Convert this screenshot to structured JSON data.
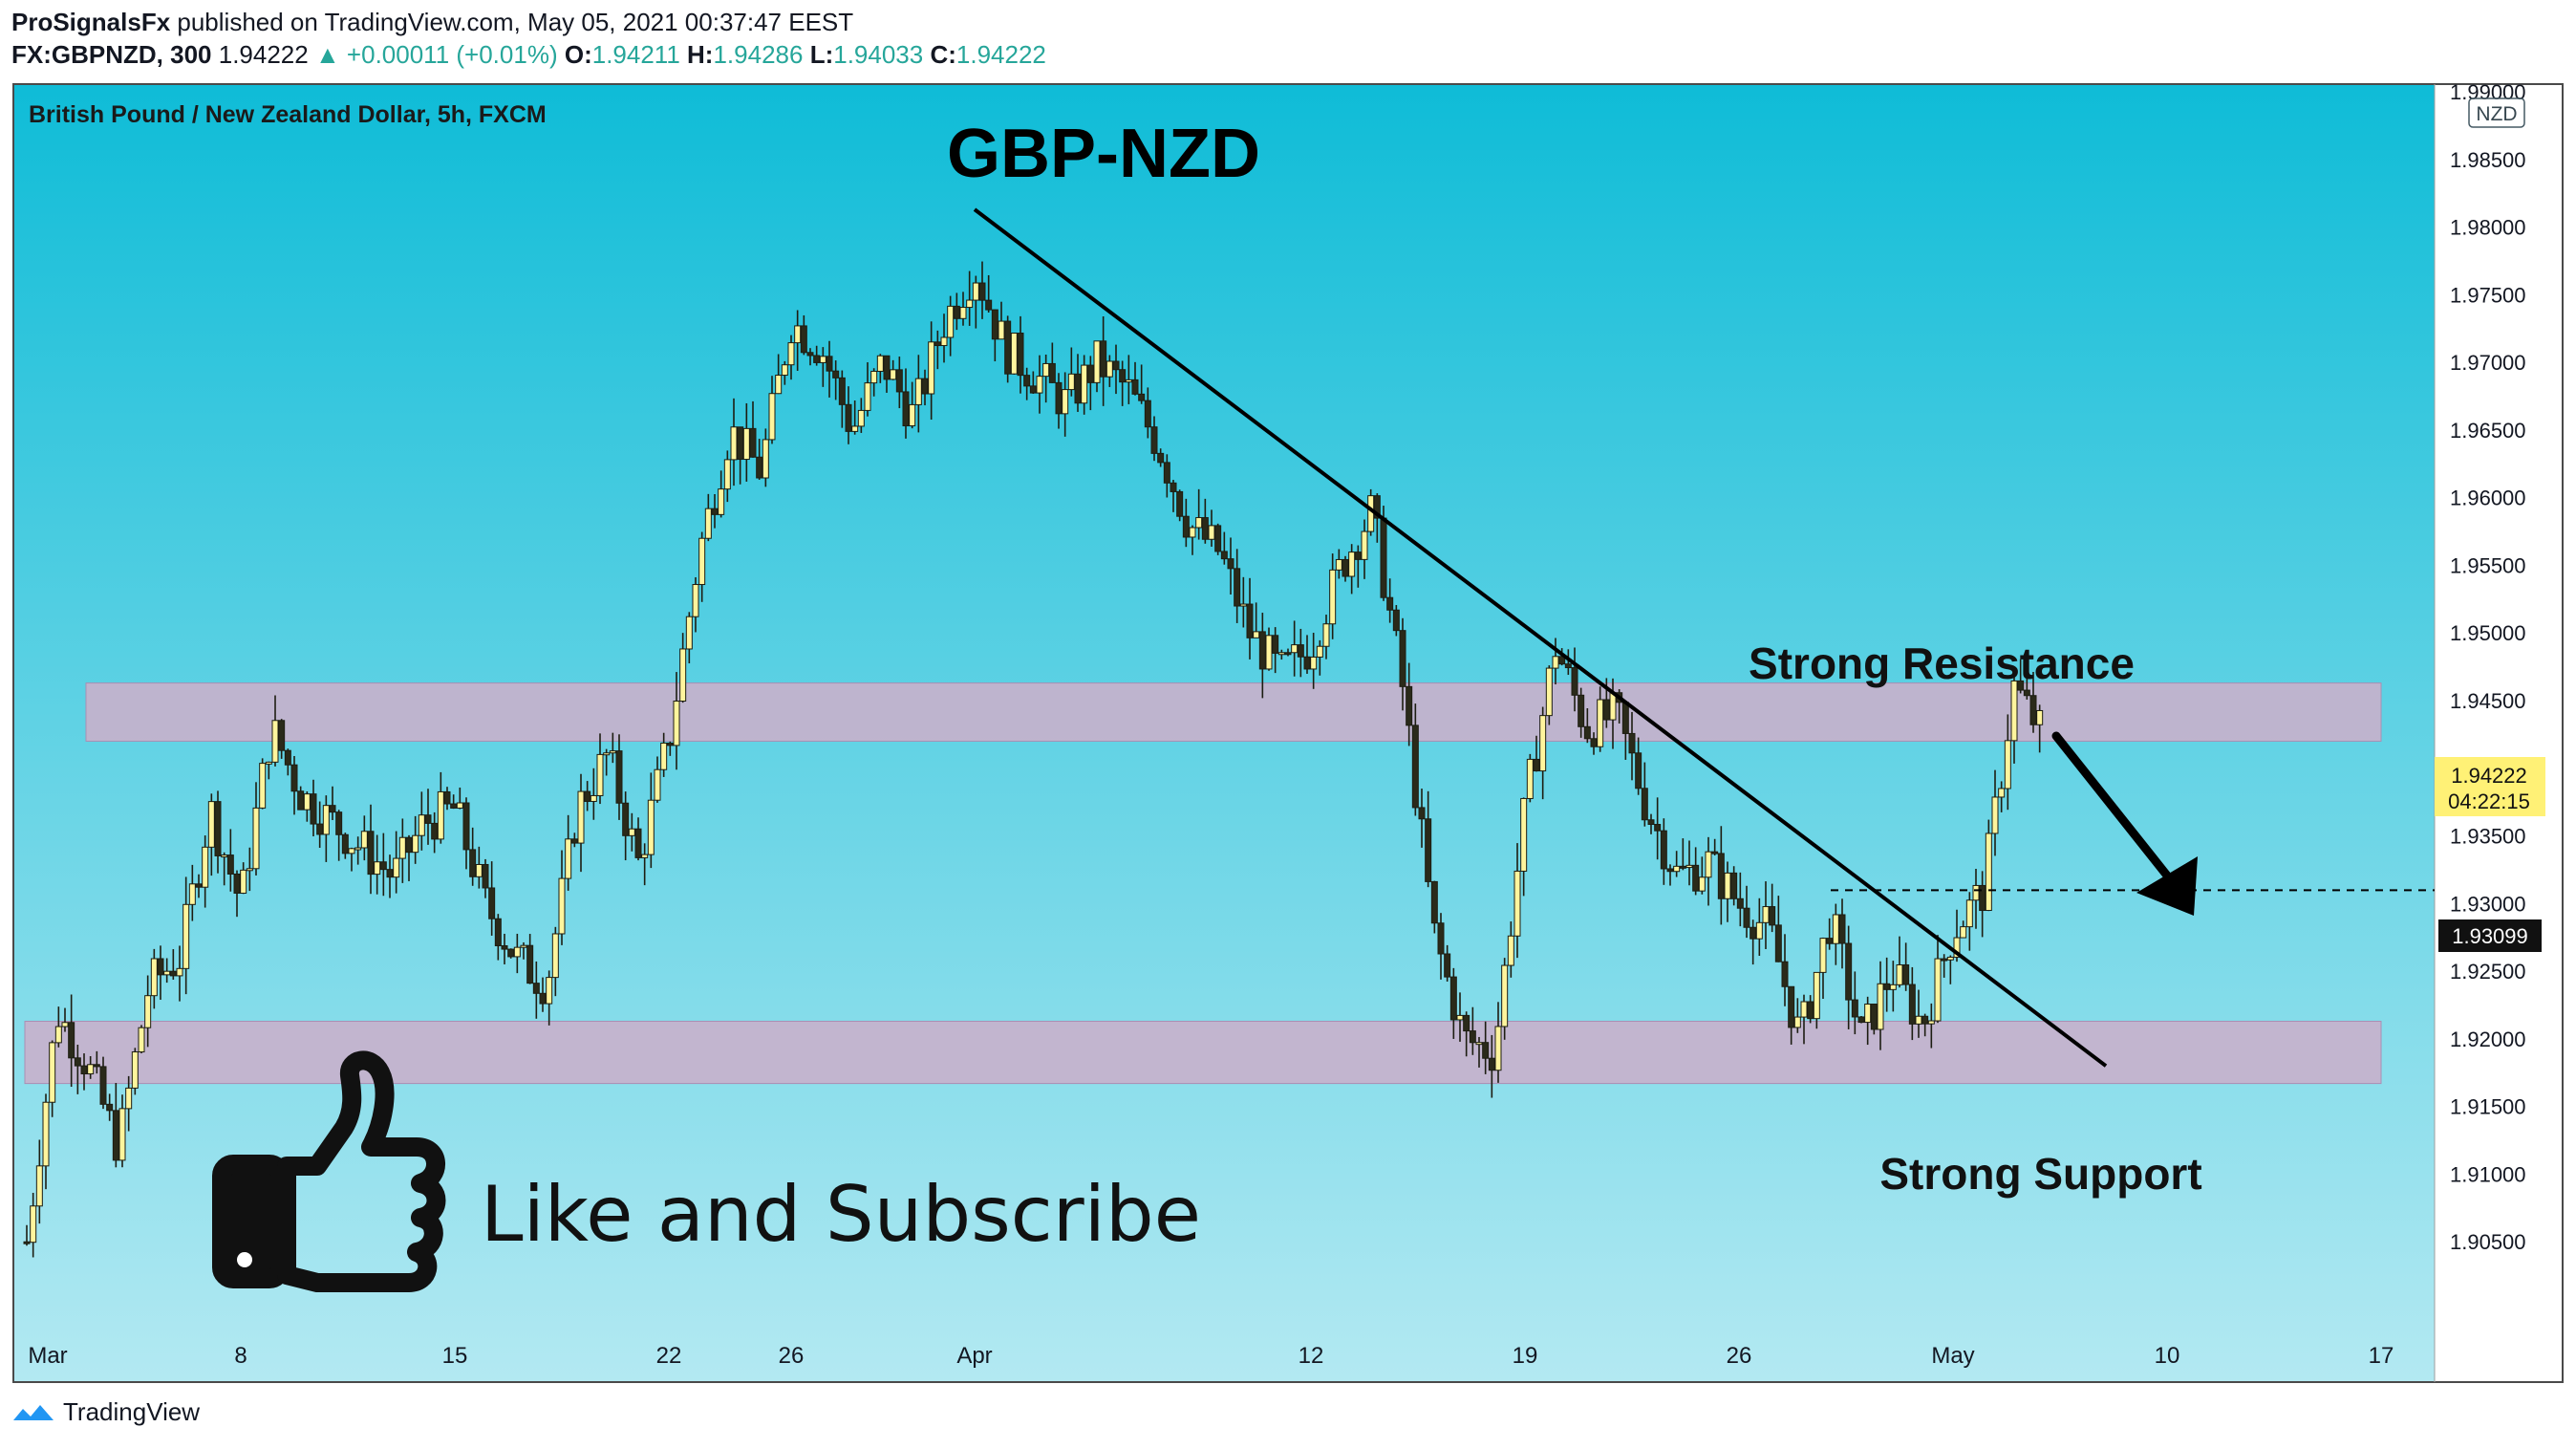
{
  "header": {
    "publisher": "ProSignalsFx",
    "published_text": "published on TradingView.com, May 05, 2021 00:37:47 EEST",
    "symbol": "FX:GBPNZD, 300",
    "last": "1.94222",
    "change": "+0.00011 (+0.01%)",
    "open_label": "O:",
    "open": "1.94211",
    "high_label": "H:",
    "high": "1.94286",
    "low_label": "L:",
    "low": "1.94033",
    "close_label": "C:",
    "close": "1.94222"
  },
  "chart_data": {
    "type": "candlestick",
    "title": "GBP-NZD",
    "subtitle": "British Pound / New Zealand Dollar, 5h, FXCM",
    "currency_badge": "NZD",
    "ylim": [
      1.9,
      1.99
    ],
    "y_ticks": [
      "1.99000",
      "1.98500",
      "1.98000",
      "1.97500",
      "1.97000",
      "1.96500",
      "1.96000",
      "1.95500",
      "1.95000",
      "1.94500",
      "1.94000",
      "1.93500",
      "1.93000",
      "1.92500",
      "1.92000",
      "1.91500",
      "1.91000",
      "1.90500"
    ],
    "y_tick_values": [
      1.99,
      1.985,
      1.98,
      1.975,
      1.97,
      1.965,
      1.96,
      1.955,
      1.95,
      1.945,
      1.94,
      1.935,
      1.93,
      1.925,
      1.92,
      1.915,
      1.91,
      1.905
    ],
    "x_ticks": [
      "Mar",
      "8",
      "15",
      "22",
      "26",
      "Apr",
      "12",
      "19",
      "26",
      "May",
      "10",
      "17"
    ],
    "x_tick_dates": [
      "2021-03-01",
      "2021-03-08",
      "2021-03-15",
      "2021-03-22",
      "2021-03-26",
      "2021-04-01",
      "2021-04-12",
      "2021-04-19",
      "2021-04-26",
      "2021-05-03",
      "2021-05-10",
      "2021-05-17"
    ],
    "x_range": [
      "2021-03-01",
      "2021-05-17"
    ],
    "last_price": "1.94222",
    "countdown": "04:22:15",
    "level_price": "1.93099",
    "level_value": 1.93099,
    "price_path": [
      [
        "2021-03-01",
        1.905
      ],
      [
        "2021-03-02",
        1.922
      ],
      [
        "2021-03-03",
        1.918
      ],
      [
        "2021-03-04",
        1.912
      ],
      [
        "2021-03-05",
        1.924
      ],
      [
        "2021-03-06",
        1.926
      ],
      [
        "2021-03-07",
        1.937
      ],
      [
        "2021-03-08",
        1.93
      ],
      [
        "2021-03-09",
        1.943
      ],
      [
        "2021-03-10",
        1.938
      ],
      [
        "2021-03-11",
        1.936
      ],
      [
        "2021-03-12",
        1.934
      ],
      [
        "2021-03-13",
        1.932
      ],
      [
        "2021-03-14",
        1.936
      ],
      [
        "2021-03-15",
        1.937
      ],
      [
        "2021-03-16",
        1.93
      ],
      [
        "2021-03-17",
        1.926
      ],
      [
        "2021-03-18",
        1.924
      ],
      [
        "2021-03-19",
        1.937
      ],
      [
        "2021-03-20",
        1.941
      ],
      [
        "2021-03-21",
        1.933
      ],
      [
        "2021-03-22",
        1.942
      ],
      [
        "2021-03-23",
        1.956
      ],
      [
        "2021-03-24",
        1.965
      ],
      [
        "2021-03-25",
        1.962
      ],
      [
        "2021-03-26",
        1.973
      ],
      [
        "2021-03-27",
        1.971
      ],
      [
        "2021-03-28",
        1.965
      ],
      [
        "2021-03-29",
        1.97
      ],
      [
        "2021-03-30",
        1.966
      ],
      [
        "2021-03-31",
        1.973
      ],
      [
        "2021-04-01",
        1.977
      ],
      [
        "2021-04-02",
        1.971
      ],
      [
        "2021-04-03",
        1.969
      ],
      [
        "2021-04-04",
        1.967
      ],
      [
        "2021-04-05",
        1.97
      ],
      [
        "2021-04-06",
        1.968
      ],
      [
        "2021-04-07",
        1.964
      ],
      [
        "2021-04-08",
        1.958
      ],
      [
        "2021-04-09",
        1.956
      ],
      [
        "2021-04-10",
        1.95
      ],
      [
        "2021-04-11",
        1.947
      ],
      [
        "2021-04-12",
        1.949
      ],
      [
        "2021-04-13",
        1.955
      ],
      [
        "2021-04-14",
        1.959
      ],
      [
        "2021-04-15",
        1.946
      ],
      [
        "2021-04-16",
        1.928
      ],
      [
        "2021-04-17",
        1.92
      ],
      [
        "2021-04-18",
        1.919
      ],
      [
        "2021-04-19",
        1.937
      ],
      [
        "2021-04-20",
        1.949
      ],
      [
        "2021-04-21",
        1.943
      ],
      [
        "2021-04-22",
        1.944
      ],
      [
        "2021-04-23",
        1.937
      ],
      [
        "2021-04-24",
        1.932
      ],
      [
        "2021-04-25",
        1.933
      ],
      [
        "2021-04-26",
        1.93
      ],
      [
        "2021-04-27",
        1.928
      ],
      [
        "2021-04-28",
        1.92
      ],
      [
        "2021-04-29",
        1.929
      ],
      [
        "2021-04-30",
        1.92
      ],
      [
        "2021-05-01",
        1.925
      ],
      [
        "2021-05-02",
        1.921
      ],
      [
        "2021-05-03",
        1.928
      ],
      [
        "2021-05-04",
        1.931
      ],
      [
        "2021-05-05",
        1.946
      ],
      [
        "2021-05-06",
        1.9422
      ]
    ],
    "zones": [
      {
        "from": 1.942,
        "to": 1.9463,
        "x_from": "2021-03-03",
        "x_to": "2021-05-17"
      },
      {
        "from": 1.9167,
        "to": 1.9213,
        "x_from": "2021-03-01",
        "x_to": "2021-05-17"
      }
    ],
    "trendline": [
      [
        "2021-04-01",
        1.9813
      ],
      [
        "2021-05-08",
        1.918
      ]
    ],
    "annotations": {
      "resistance": "Strong Resistance",
      "support": "Strong Support",
      "cta": "Like and Subscribe"
    },
    "colors": {
      "bg_top": "#0fbcd7",
      "bg_bottom": "#b3e9f2",
      "zone": "#c7b1cc",
      "candle_up": "#fff59d",
      "candle_down": "#2a2a1a",
      "last_price_badge": "#fff176",
      "trendline": "#000000"
    }
  },
  "footer": {
    "brand": "TradingView"
  }
}
